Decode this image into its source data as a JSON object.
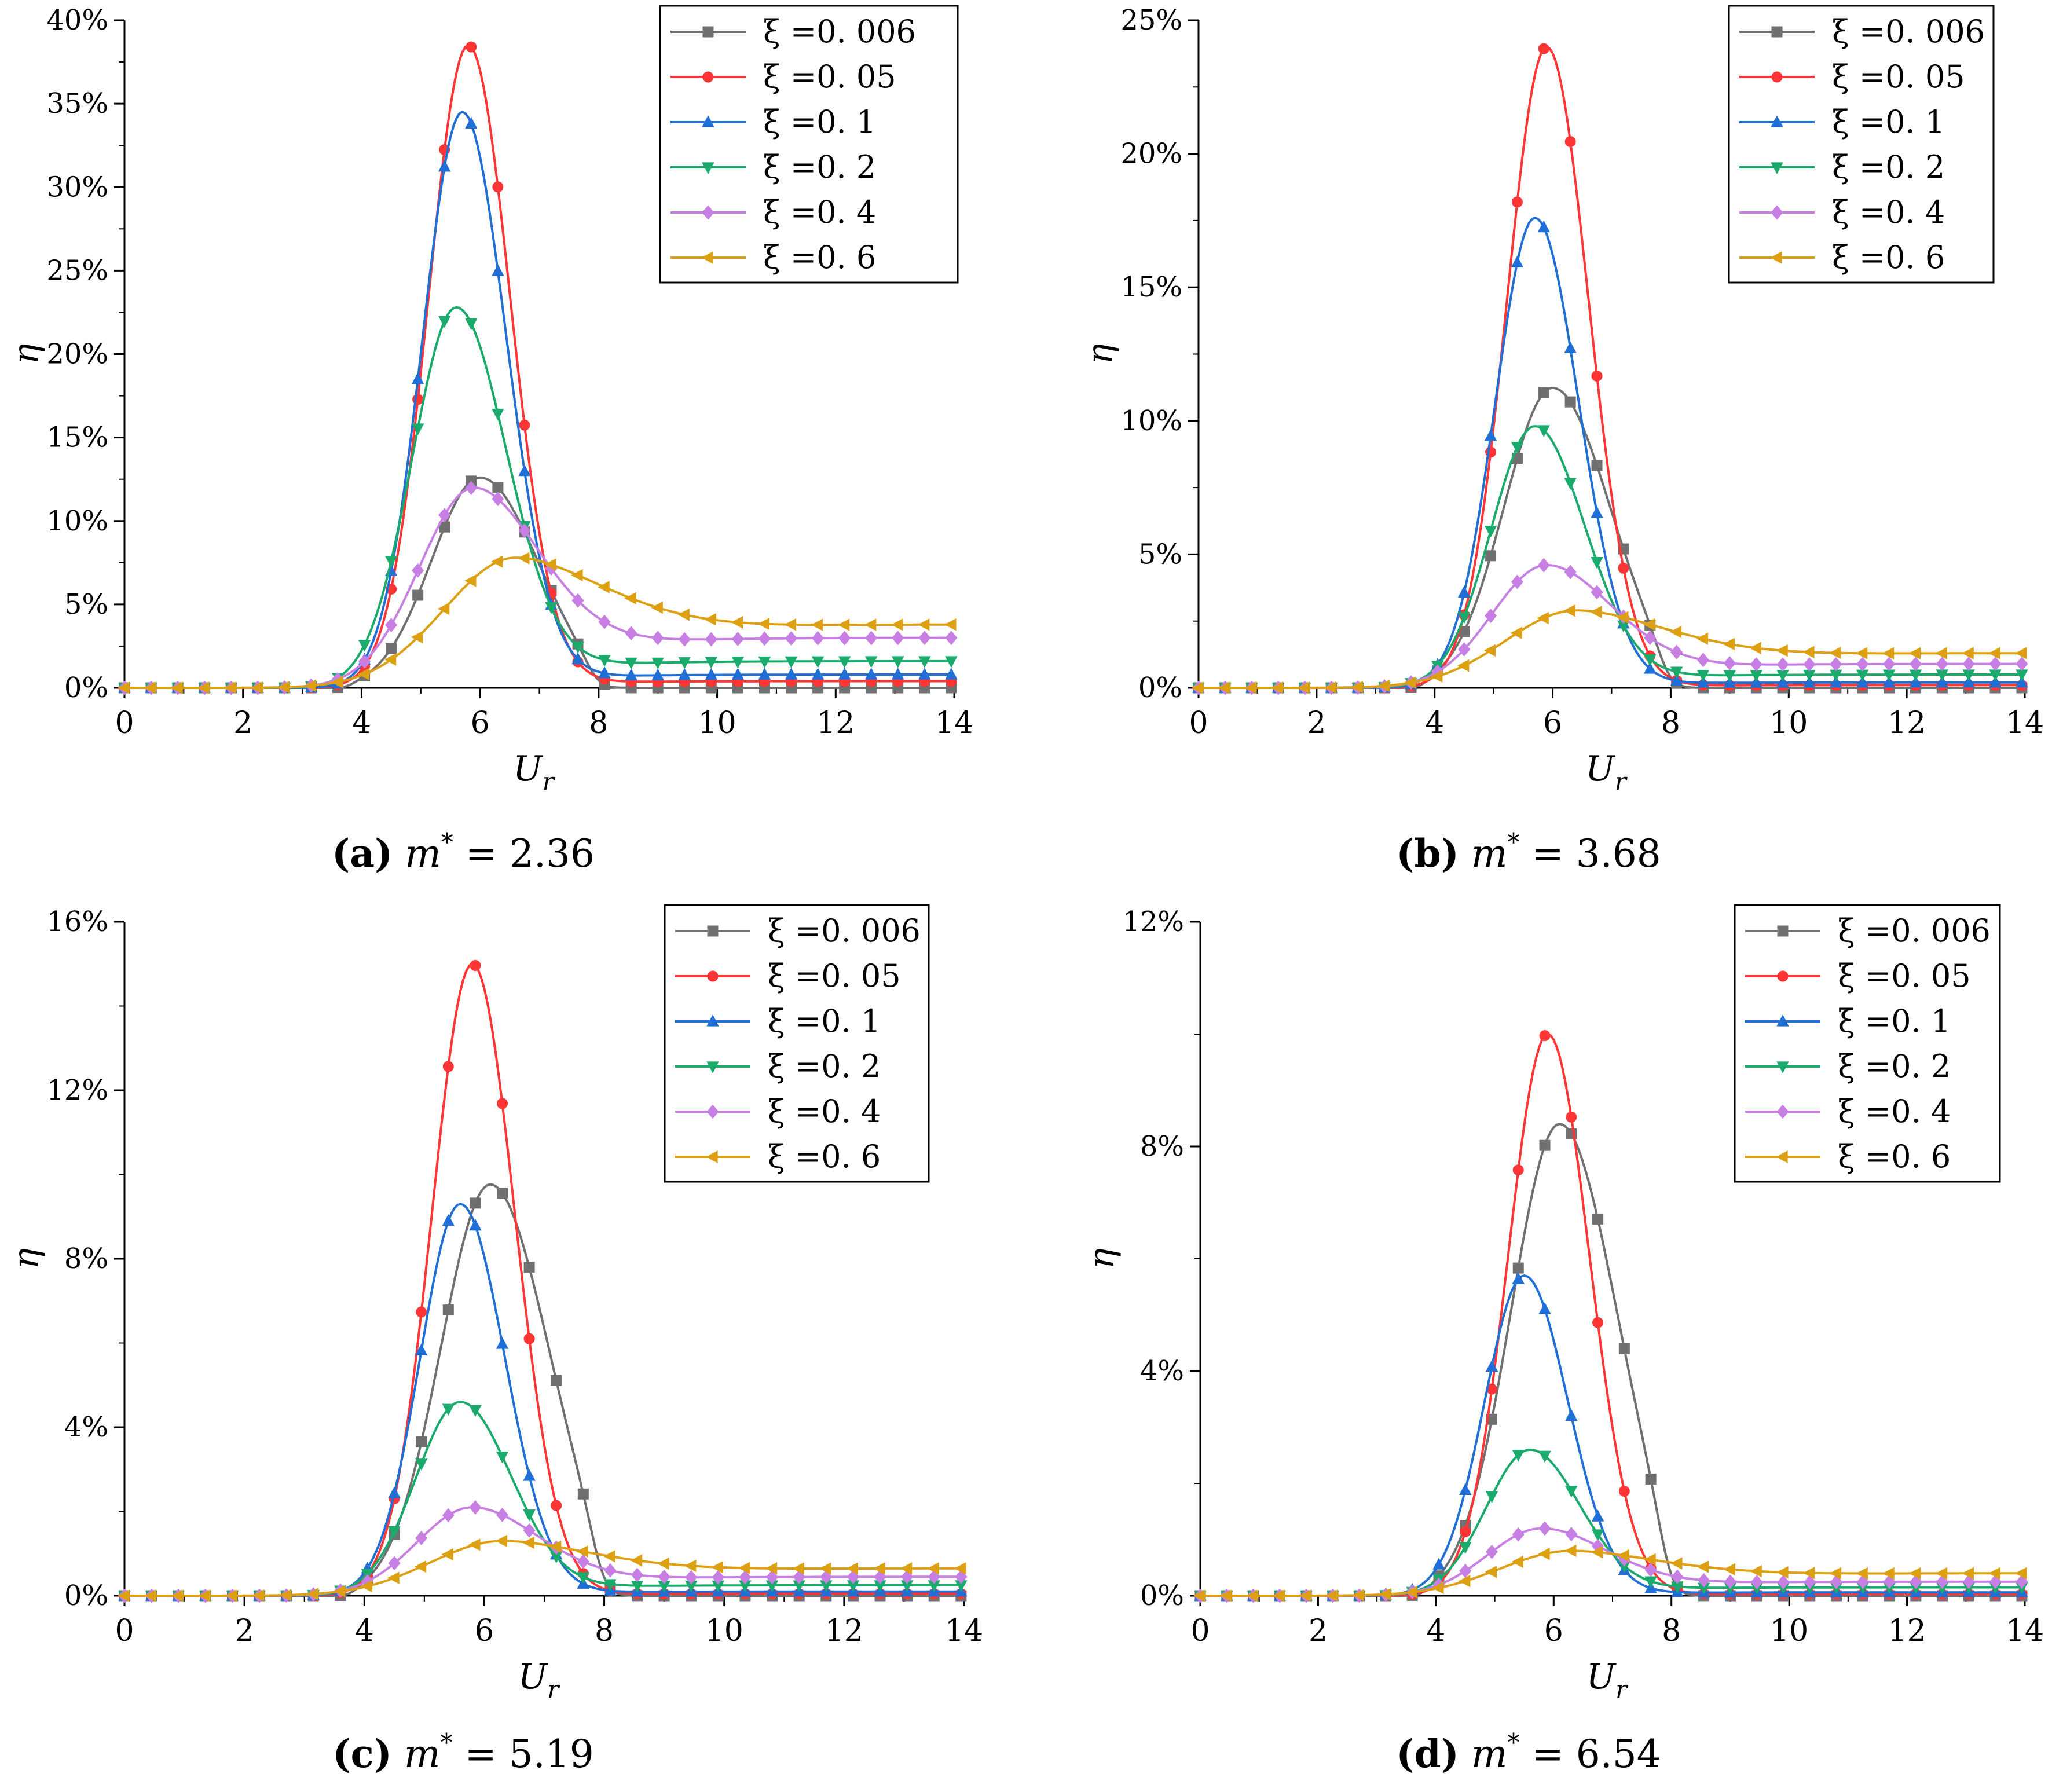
{
  "figure": {
    "colors": {
      "s0006": "#707070",
      "s005": "#ff3535",
      "s01": "#1f6fd6",
      "s02": "#1aaa6c",
      "s04": "#c77fe3",
      "s06": "#dca012"
    },
    "series_order": [
      "s0006",
      "s005",
      "s01",
      "s02",
      "s04",
      "s06"
    ],
    "legend_labels": {
      "s0006": "ξ =0. 006",
      "s005": "ξ =0. 05",
      "s01": "ξ =0. 1",
      "s02": "ξ =0. 2",
      "s04": "ξ =0. 4",
      "s06": "ξ =0. 6"
    }
  },
  "chart_data": [
    {
      "id": "a",
      "type": "line",
      "caption_letter": "(a)",
      "caption_var": "m",
      "caption_sup": "*",
      "caption_value": "= 2.36",
      "xlabel": "U",
      "xlabel_sub": "r",
      "ylabel": "η",
      "xlim": [
        0,
        14
      ],
      "ylim": [
        0,
        40
      ],
      "xticks": [
        0,
        2,
        4,
        6,
        8,
        10,
        12,
        14
      ],
      "yticks": [
        0,
        5,
        10,
        15,
        20,
        25,
        30,
        35,
        40
      ],
      "ytick_labels": [
        "0%",
        "5%",
        "10%",
        "15%",
        "20%",
        "25%",
        "30%",
        "35%",
        "40%"
      ],
      "legend_position": "top-right",
      "peaks": {
        "s0006": {
          "x": 6.0,
          "y": 12.0
        },
        "s005": {
          "x": 5.8,
          "y": 38.5
        },
        "s01": {
          "x": 5.7,
          "y": 34.5
        },
        "s02": {
          "x": 5.6,
          "y": 22.8
        },
        "s04": {
          "x": 5.9,
          "y": 12.0
        },
        "s06": {
          "x": 6.6,
          "y": 7.8
        }
      },
      "tails": {
        "s0006": 0.0,
        "s005": 0.4,
        "s01": 0.8,
        "s02": 1.6,
        "s04": 3.0,
        "s06": 3.8
      }
    },
    {
      "id": "b",
      "type": "line",
      "caption_letter": "(b)",
      "caption_var": "m",
      "caption_sup": "*",
      "caption_value": "= 3.68",
      "xlabel": "U",
      "xlabel_sub": "r",
      "ylabel": "η",
      "xlim": [
        0,
        14
      ],
      "ylim": [
        0,
        25
      ],
      "xticks": [
        0,
        2,
        4,
        6,
        8,
        10,
        12,
        14
      ],
      "yticks": [
        0,
        5,
        10,
        15,
        20,
        25
      ],
      "ytick_labels": [
        "0%",
        "5%",
        "10%",
        "15%",
        "20%",
        "25%"
      ],
      "legend_position": "top-right",
      "peaks": {
        "s0006": {
          "x": 6.0,
          "y": 10.7
        },
        "s005": {
          "x": 5.9,
          "y": 24.0
        },
        "s01": {
          "x": 5.7,
          "y": 17.6
        },
        "s02": {
          "x": 5.7,
          "y": 9.8
        },
        "s04": {
          "x": 5.9,
          "y": 4.6
        },
        "s06": {
          "x": 6.4,
          "y": 2.9
        }
      },
      "tails": {
        "s0006": 0.0,
        "s005": 0.1,
        "s01": 0.2,
        "s02": 0.5,
        "s04": 0.9,
        "s06": 1.3
      }
    },
    {
      "id": "c",
      "type": "line",
      "caption_letter": "(c)",
      "caption_var": "m",
      "caption_sup": "*",
      "caption_value": "= 5.19",
      "xlabel": "U",
      "xlabel_sub": "r",
      "ylabel": "η",
      "xlim": [
        0,
        14
      ],
      "ylim": [
        0,
        16
      ],
      "xticks": [
        0,
        2,
        4,
        6,
        8,
        10,
        12,
        14
      ],
      "yticks": [
        0,
        4,
        8,
        12,
        16
      ],
      "ytick_labels": [
        "0%",
        "4%",
        "8%",
        "12%",
        "16%"
      ],
      "legend_position": "top-right",
      "peaks": {
        "s0006": {
          "x": 6.1,
          "y": 9.3
        },
        "s005": {
          "x": 5.8,
          "y": 15.0
        },
        "s01": {
          "x": 5.6,
          "y": 9.3
        },
        "s02": {
          "x": 5.6,
          "y": 4.6
        },
        "s04": {
          "x": 5.8,
          "y": 2.1
        },
        "s06": {
          "x": 6.3,
          "y": 1.3
        }
      },
      "tails": {
        "s0006": 0.0,
        "s005": 0.05,
        "s01": 0.1,
        "s02": 0.25,
        "s04": 0.45,
        "s06": 0.65
      }
    },
    {
      "id": "d",
      "type": "line",
      "caption_letter": "(d)",
      "caption_var": "m",
      "caption_sup": "*",
      "caption_value": "= 6.54",
      "xlabel": "U",
      "xlabel_sub": "r",
      "ylabel": "η",
      "xlim": [
        0,
        14
      ],
      "ylim": [
        0,
        12
      ],
      "xticks": [
        0,
        2,
        4,
        6,
        8,
        10,
        12,
        14
      ],
      "yticks": [
        0,
        4,
        8,
        12
      ],
      "ytick_labels": [
        "0%",
        "4%",
        "8%",
        "12%"
      ],
      "legend_position": "top-right",
      "peaks": {
        "s0006": {
          "x": 6.1,
          "y": 8.0
        },
        "s005": {
          "x": 5.9,
          "y": 10.0
        },
        "s01": {
          "x": 5.5,
          "y": 5.7
        },
        "s02": {
          "x": 5.6,
          "y": 2.6
        },
        "s04": {
          "x": 5.8,
          "y": 1.2
        },
        "s06": {
          "x": 6.3,
          "y": 0.8
        }
      },
      "tails": {
        "s0006": 0.0,
        "s005": 0.03,
        "s01": 0.06,
        "s02": 0.15,
        "s04": 0.25,
        "s06": 0.4
      }
    }
  ]
}
